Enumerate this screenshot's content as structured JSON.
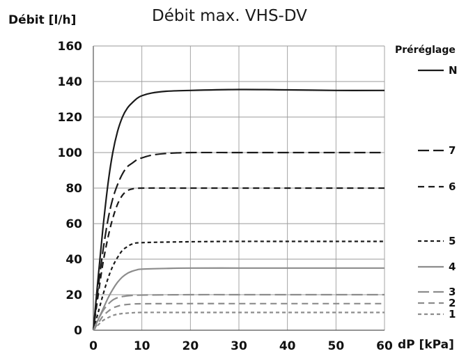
{
  "chart_data": {
    "type": "line",
    "title": "Débit max. VHS-DV",
    "ylabel": "Débit [l/h]",
    "xlabel": "dP [kPa]",
    "legend_title": "Préréglage",
    "legend_position": "right",
    "xlim": [
      0,
      60
    ],
    "ylim": [
      0,
      160
    ],
    "x_ticks": [
      0,
      10,
      20,
      30,
      40,
      50,
      60
    ],
    "y_ticks": [
      0,
      20,
      40,
      60,
      80,
      100,
      120,
      140,
      160
    ],
    "grid": true,
    "series": [
      {
        "name": "N",
        "color": "#1a1a1a",
        "style": "solid",
        "points": [
          [
            0,
            0
          ],
          [
            1,
            30
          ],
          [
            2,
            58
          ],
          [
            3,
            82
          ],
          [
            4,
            100
          ],
          [
            5,
            112
          ],
          [
            6,
            120
          ],
          [
            7,
            125
          ],
          [
            8,
            128
          ],
          [
            9,
            130.5
          ],
          [
            10,
            132
          ],
          [
            12,
            133.5
          ],
          [
            15,
            134.5
          ],
          [
            20,
            135
          ],
          [
            30,
            135.5
          ],
          [
            40,
            135.3
          ],
          [
            50,
            135
          ],
          [
            60,
            135
          ]
        ]
      },
      {
        "name": "7",
        "color": "#1a1a1a",
        "style": "longdash",
        "points": [
          [
            0,
            0
          ],
          [
            1,
            24
          ],
          [
            2,
            45
          ],
          [
            3,
            62
          ],
          [
            4,
            74
          ],
          [
            5,
            82
          ],
          [
            6,
            88
          ],
          [
            7,
            92
          ],
          [
            8,
            94
          ],
          [
            9,
            96
          ],
          [
            10,
            97
          ],
          [
            12,
            98.5
          ],
          [
            15,
            99.5
          ],
          [
            20,
            100
          ],
          [
            30,
            100
          ],
          [
            40,
            100
          ],
          [
            50,
            100
          ],
          [
            60,
            100
          ]
        ]
      },
      {
        "name": "6",
        "color": "#1a1a1a",
        "style": "dash",
        "points": [
          [
            0,
            0
          ],
          [
            1,
            20
          ],
          [
            2,
            38
          ],
          [
            3,
            52
          ],
          [
            4,
            63
          ],
          [
            5,
            71
          ],
          [
            6,
            76
          ],
          [
            7,
            78.5
          ],
          [
            8,
            79.5
          ],
          [
            10,
            80
          ],
          [
            20,
            80
          ],
          [
            30,
            80
          ],
          [
            40,
            80
          ],
          [
            50,
            80
          ],
          [
            60,
            80
          ]
        ]
      },
      {
        "name": "5",
        "color": "#1a1a1a",
        "style": "shortdash",
        "points": [
          [
            0,
            0
          ],
          [
            1,
            10
          ],
          [
            2,
            20
          ],
          [
            3,
            29
          ],
          [
            4,
            36
          ],
          [
            5,
            41
          ],
          [
            6,
            45
          ],
          [
            7,
            47
          ],
          [
            8,
            48.5
          ],
          [
            10,
            49.3
          ],
          [
            20,
            49.8
          ],
          [
            30,
            50
          ],
          [
            40,
            50
          ],
          [
            50,
            50
          ],
          [
            60,
            50
          ]
        ]
      },
      {
        "name": "4",
        "color": "#8c8c8c",
        "style": "solid",
        "points": [
          [
            0,
            0
          ],
          [
            1,
            6
          ],
          [
            2,
            12
          ],
          [
            3,
            18
          ],
          [
            4,
            23
          ],
          [
            5,
            27
          ],
          [
            6,
            30
          ],
          [
            7,
            32
          ],
          [
            8,
            33.2
          ],
          [
            9,
            34
          ],
          [
            10,
            34.4
          ],
          [
            15,
            34.8
          ],
          [
            20,
            35
          ],
          [
            30,
            35
          ],
          [
            40,
            35
          ],
          [
            50,
            35
          ],
          [
            60,
            35
          ]
        ]
      },
      {
        "name": "3",
        "color": "#8c8c8c",
        "style": "longdash",
        "points": [
          [
            0,
            0
          ],
          [
            1,
            6
          ],
          [
            2,
            11
          ],
          [
            3,
            14.5
          ],
          [
            4,
            17
          ],
          [
            5,
            18.3
          ],
          [
            6,
            19
          ],
          [
            8,
            19.6
          ],
          [
            10,
            19.8
          ],
          [
            20,
            20
          ],
          [
            30,
            20
          ],
          [
            40,
            20
          ],
          [
            50,
            20
          ],
          [
            60,
            20
          ]
        ]
      },
      {
        "name": "2",
        "color": "#8c8c8c",
        "style": "dash",
        "points": [
          [
            0,
            0
          ],
          [
            1,
            4
          ],
          [
            2,
            8
          ],
          [
            3,
            10.5
          ],
          [
            4,
            12.5
          ],
          [
            5,
            13.5
          ],
          [
            6,
            14.2
          ],
          [
            8,
            14.7
          ],
          [
            10,
            14.9
          ],
          [
            20,
            15
          ],
          [
            30,
            15
          ],
          [
            40,
            15
          ],
          [
            50,
            15
          ],
          [
            60,
            15
          ]
        ]
      },
      {
        "name": "1",
        "color": "#8c8c8c",
        "style": "shortdash",
        "points": [
          [
            0,
            0
          ],
          [
            1,
            3
          ],
          [
            2,
            5.5
          ],
          [
            3,
            7
          ],
          [
            4,
            8.3
          ],
          [
            5,
            9
          ],
          [
            6,
            9.4
          ],
          [
            8,
            9.8
          ],
          [
            10,
            10
          ],
          [
            20,
            10
          ],
          [
            30,
            10
          ],
          [
            40,
            10
          ],
          [
            50,
            10
          ],
          [
            60,
            10
          ]
        ]
      }
    ]
  }
}
